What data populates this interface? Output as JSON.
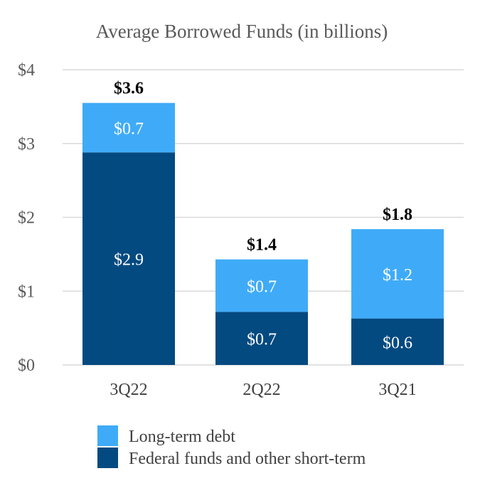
{
  "chart_data": {
    "type": "bar",
    "stacked": true,
    "title": "Average Borrowed Funds (in billions)",
    "xlabel": "",
    "ylabel": "",
    "ylim": [
      0,
      4
    ],
    "yticks": [
      0,
      1,
      2,
      3,
      4
    ],
    "ytick_labels": [
      "$0",
      "$1",
      "$2",
      "$3",
      "$4"
    ],
    "grid": true,
    "legend_position": "bottom",
    "categories": [
      "3Q22",
      "2Q22",
      "3Q21"
    ],
    "series": [
      {
        "name": "Federal funds and other short-term",
        "color": "#034a80",
        "values": [
          2.88,
          0.72,
          0.63
        ],
        "labels": [
          "$2.9",
          "$0.7",
          "$0.6"
        ]
      },
      {
        "name": "Long-term debt",
        "color": "#3fabf8",
        "values": [
          0.67,
          0.71,
          1.21
        ],
        "labels": [
          "$0.7",
          "$0.7",
          "$1.2"
        ]
      }
    ],
    "totals": [
      3.55,
      1.43,
      1.84
    ],
    "total_labels": [
      "$3.6",
      "$1.4",
      "$1.8"
    ]
  },
  "legend": {
    "items": [
      {
        "label": "Long-term debt",
        "color": "#3fabf8"
      },
      {
        "label": "Federal funds and other short-term",
        "color": "#034a80"
      }
    ]
  }
}
